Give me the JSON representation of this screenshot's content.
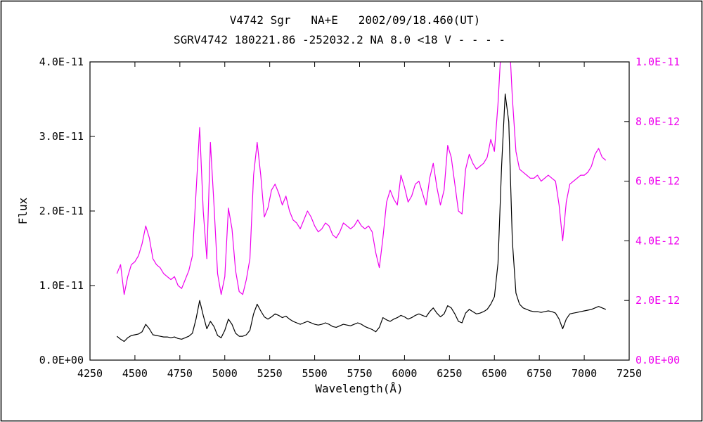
{
  "page": {
    "background": "#ffffff",
    "border_color": "#000000"
  },
  "chart_data": {
    "type": "line",
    "title": "V4742 Sgr   NA+E   2002/09/18.460(UT)",
    "subtitle": "SGRV4742 180221.86 -252032.2 NA 8.0 <18 V - - - -",
    "xlabel": "Wavelength(Å)",
    "ylabel": "Flux",
    "grid": false,
    "legend": "none",
    "x_axis": {
      "min": 4250,
      "max": 7250,
      "ticks": [
        4250,
        4500,
        4750,
        5000,
        5250,
        5500,
        5750,
        6000,
        6250,
        6500,
        6750,
        7000,
        7250
      ]
    },
    "left_axis": {
      "unit": "1e-11",
      "min": 0,
      "max": 4,
      "color": "#000000",
      "tick_values": [
        0,
        1,
        2,
        3,
        4
      ],
      "tick_labels": [
        "0.0E+00",
        "1.0E-11",
        "2.0E-11",
        "3.0E-11",
        "4.0E-11"
      ]
    },
    "right_axis": {
      "unit": "1e-12",
      "min": 0,
      "max": 10,
      "color": "#ee00ee",
      "tick_values": [
        0,
        2,
        4,
        6,
        8,
        10
      ],
      "tick_labels": [
        "0.0E+00",
        "2.0E-12",
        "4.0E-12",
        "6.0E-12",
        "8.0E-12",
        "1.0E-11"
      ]
    },
    "x": [
      4400,
      4420,
      4440,
      4460,
      4480,
      4500,
      4520,
      4540,
      4560,
      4580,
      4600,
      4620,
      4640,
      4660,
      4680,
      4700,
      4720,
      4740,
      4760,
      4780,
      4800,
      4820,
      4840,
      4860,
      4880,
      4900,
      4920,
      4940,
      4960,
      4980,
      5000,
      5020,
      5040,
      5060,
      5080,
      5100,
      5120,
      5140,
      5160,
      5180,
      5200,
      5220,
      5240,
      5260,
      5280,
      5300,
      5320,
      5340,
      5360,
      5380,
      5400,
      5420,
      5440,
      5460,
      5480,
      5500,
      5520,
      5540,
      5560,
      5580,
      5600,
      5620,
      5640,
      5660,
      5680,
      5700,
      5720,
      5740,
      5760,
      5780,
      5800,
      5820,
      5840,
      5860,
      5880,
      5900,
      5920,
      5940,
      5960,
      5980,
      6000,
      6020,
      6040,
      6060,
      6080,
      6100,
      6120,
      6140,
      6160,
      6180,
      6200,
      6220,
      6240,
      6260,
      6280,
      6300,
      6320,
      6340,
      6360,
      6380,
      6400,
      6420,
      6440,
      6460,
      6480,
      6500,
      6520,
      6540,
      6560,
      6580,
      6600,
      6620,
      6640,
      6660,
      6680,
      6700,
      6720,
      6740,
      6760,
      6780,
      6800,
      6820,
      6840,
      6860,
      6880,
      6900,
      6920,
      6940,
      6960,
      6980,
      7000,
      7020,
      7040,
      7060,
      7080,
      7100,
      7120
    ],
    "series": [
      {
        "name": "spectrum-black-left-axis",
        "axis": "left",
        "color": "#000000",
        "values": [
          0.32,
          0.28,
          0.25,
          0.3,
          0.33,
          0.34,
          0.35,
          0.38,
          0.48,
          0.42,
          0.34,
          0.33,
          0.32,
          0.31,
          0.31,
          0.3,
          0.31,
          0.29,
          0.28,
          0.3,
          0.32,
          0.36,
          0.55,
          0.8,
          0.6,
          0.42,
          0.52,
          0.45,
          0.33,
          0.3,
          0.4,
          0.55,
          0.48,
          0.36,
          0.32,
          0.32,
          0.34,
          0.4,
          0.62,
          0.75,
          0.66,
          0.58,
          0.55,
          0.58,
          0.62,
          0.6,
          0.57,
          0.59,
          0.55,
          0.52,
          0.5,
          0.48,
          0.5,
          0.52,
          0.5,
          0.48,
          0.47,
          0.48,
          0.5,
          0.48,
          0.45,
          0.44,
          0.46,
          0.48,
          0.47,
          0.46,
          0.48,
          0.5,
          0.48,
          0.45,
          0.43,
          0.41,
          0.38,
          0.44,
          0.57,
          0.54,
          0.52,
          0.55,
          0.57,
          0.6,
          0.58,
          0.55,
          0.57,
          0.6,
          0.62,
          0.6,
          0.58,
          0.65,
          0.7,
          0.63,
          0.58,
          0.62,
          0.73,
          0.7,
          0.62,
          0.52,
          0.5,
          0.63,
          0.68,
          0.65,
          0.62,
          0.63,
          0.65,
          0.68,
          0.75,
          0.85,
          1.3,
          2.6,
          3.57,
          3.2,
          1.6,
          0.9,
          0.75,
          0.7,
          0.68,
          0.66,
          0.65,
          0.65,
          0.64,
          0.65,
          0.66,
          0.65,
          0.63,
          0.55,
          0.42,
          0.55,
          0.62,
          0.63,
          0.64,
          0.65,
          0.66,
          0.67,
          0.68,
          0.7,
          0.72,
          0.7,
          0.68
        ]
      },
      {
        "name": "spectrum-magenta-right-axis",
        "axis": "right",
        "color": "#ee00ee",
        "values": [
          2.9,
          3.2,
          2.2,
          2.8,
          3.2,
          3.3,
          3.5,
          3.9,
          4.5,
          4.1,
          3.4,
          3.2,
          3.1,
          2.9,
          2.8,
          2.7,
          2.8,
          2.5,
          2.4,
          2.7,
          3.0,
          3.5,
          5.6,
          7.8,
          5.0,
          3.4,
          7.3,
          5.2,
          2.9,
          2.2,
          2.8,
          5.1,
          4.4,
          3.0,
          2.3,
          2.2,
          2.7,
          3.4,
          6.2,
          7.3,
          6.2,
          4.8,
          5.1,
          5.7,
          5.9,
          5.6,
          5.2,
          5.5,
          5.0,
          4.7,
          4.6,
          4.4,
          4.7,
          5.0,
          4.8,
          4.5,
          4.3,
          4.4,
          4.6,
          4.5,
          4.2,
          4.1,
          4.3,
          4.6,
          4.5,
          4.4,
          4.5,
          4.7,
          4.5,
          4.4,
          4.5,
          4.3,
          3.6,
          3.1,
          4.1,
          5.3,
          5.7,
          5.4,
          5.2,
          6.2,
          5.8,
          5.3,
          5.5,
          5.9,
          6.0,
          5.6,
          5.2,
          6.1,
          6.6,
          5.8,
          5.2,
          5.7,
          7.2,
          6.8,
          5.9,
          5.0,
          4.9,
          6.4,
          6.9,
          6.6,
          6.4,
          6.5,
          6.6,
          6.8,
          7.4,
          7.0,
          8.6,
          10.8,
          11.8,
          11.2,
          8.8,
          7.0,
          6.4,
          6.3,
          6.2,
          6.1,
          6.1,
          6.2,
          6.0,
          6.1,
          6.2,
          6.1,
          6.0,
          5.2,
          4.0,
          5.3,
          5.9,
          6.0,
          6.1,
          6.2,
          6.2,
          6.3,
          6.5,
          6.9,
          7.1,
          6.8,
          6.7
        ]
      }
    ]
  }
}
